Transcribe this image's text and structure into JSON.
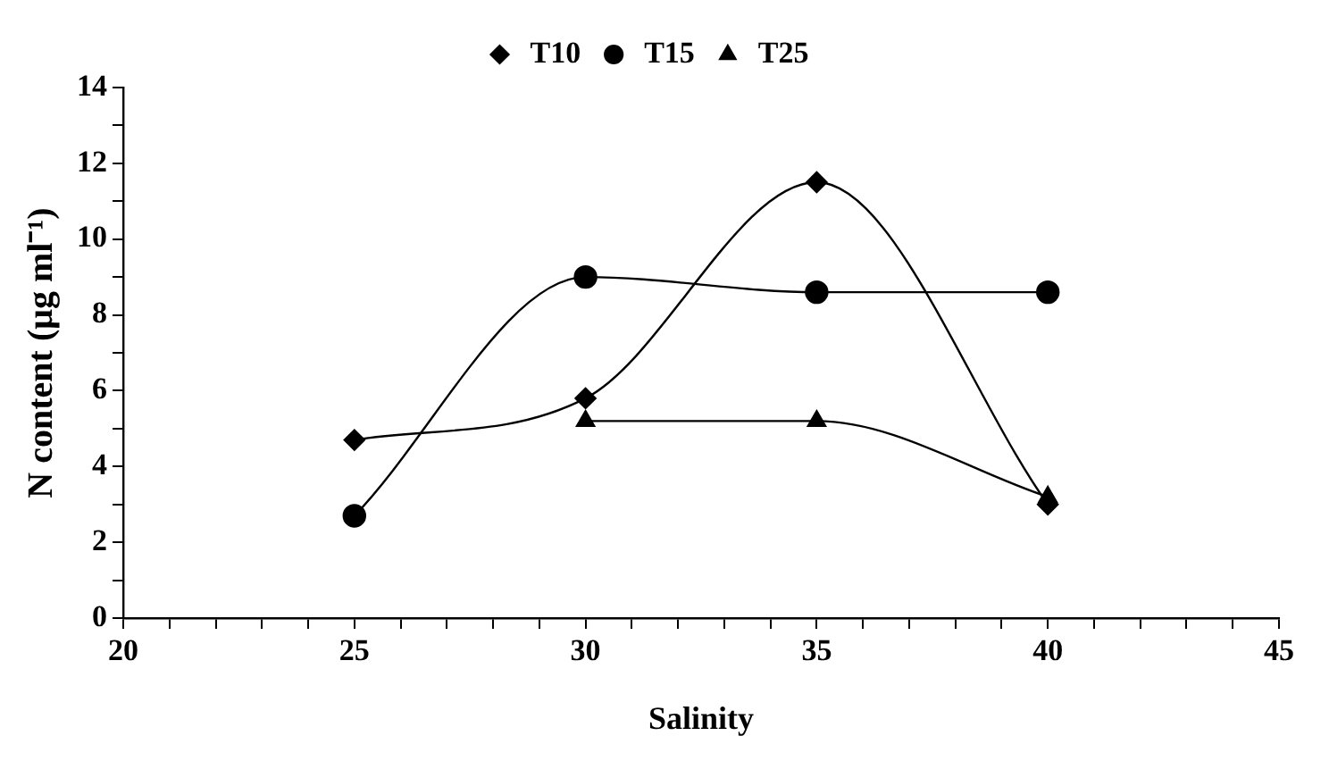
{
  "chart_data": {
    "type": "line",
    "xlabel": "Salinity",
    "ylabel": "N content (μg ml⁻¹)",
    "xlim": [
      20,
      45
    ],
    "xticks": [
      20,
      {
        "value": 21,
        "label": null
      },
      {
        "value": 22,
        "label": null
      },
      {
        "value": 23,
        "label": null
      },
      {
        "value": 24,
        "label": null
      },
      25,
      {
        "value": 26,
        "label": null
      },
      {
        "value": 27,
        "label": null
      },
      {
        "value": 28,
        "label": null
      },
      {
        "value": 29,
        "label": null
      },
      30,
      {
        "value": 31,
        "label": null
      },
      {
        "value": 32,
        "label": null
      },
      {
        "value": 33,
        "label": null
      },
      {
        "value": 34,
        "label": null
      },
      35,
      {
        "value": 36,
        "label": null
      },
      {
        "value": 37,
        "label": null
      },
      {
        "value": 38,
        "label": null
      },
      {
        "value": 39,
        "label": null
      },
      40,
      {
        "value": 41,
        "label": null
      },
      {
        "value": 42,
        "label": null
      },
      {
        "value": 43,
        "label": null
      },
      {
        "value": 44,
        "label": null
      },
      45
    ],
    "ylim": [
      0,
      14
    ],
    "yticks": [
      0,
      {
        "value": 1,
        "label": null
      },
      2,
      {
        "value": 3,
        "label": null
      },
      4,
      {
        "value": 5,
        "label": null
      },
      6,
      {
        "value": 7,
        "label": null
      },
      8,
      {
        "value": 9,
        "label": null
      },
      10,
      {
        "value": 11,
        "label": null
      },
      12,
      {
        "value": 13,
        "label": null
      },
      14
    ],
    "grid": false,
    "legend": "top",
    "line_style": "solid",
    "series": [
      {
        "name": "T10",
        "color": "#000000",
        "marker": "diamond",
        "x": [
          25,
          30,
          35,
          40
        ],
        "values": [
          4.7,
          5.8,
          11.5,
          3.0
        ]
      },
      {
        "name": "T15",
        "color": "#000000",
        "marker": "circle",
        "x": [
          25,
          30,
          35,
          40
        ],
        "values": [
          2.7,
          9.0,
          8.6,
          8.6
        ]
      },
      {
        "name": "T25",
        "color": "#000000",
        "marker": "triangle",
        "x": [
          30,
          35,
          40
        ],
        "values": [
          5.2,
          5.2,
          3.2
        ]
      }
    ]
  }
}
